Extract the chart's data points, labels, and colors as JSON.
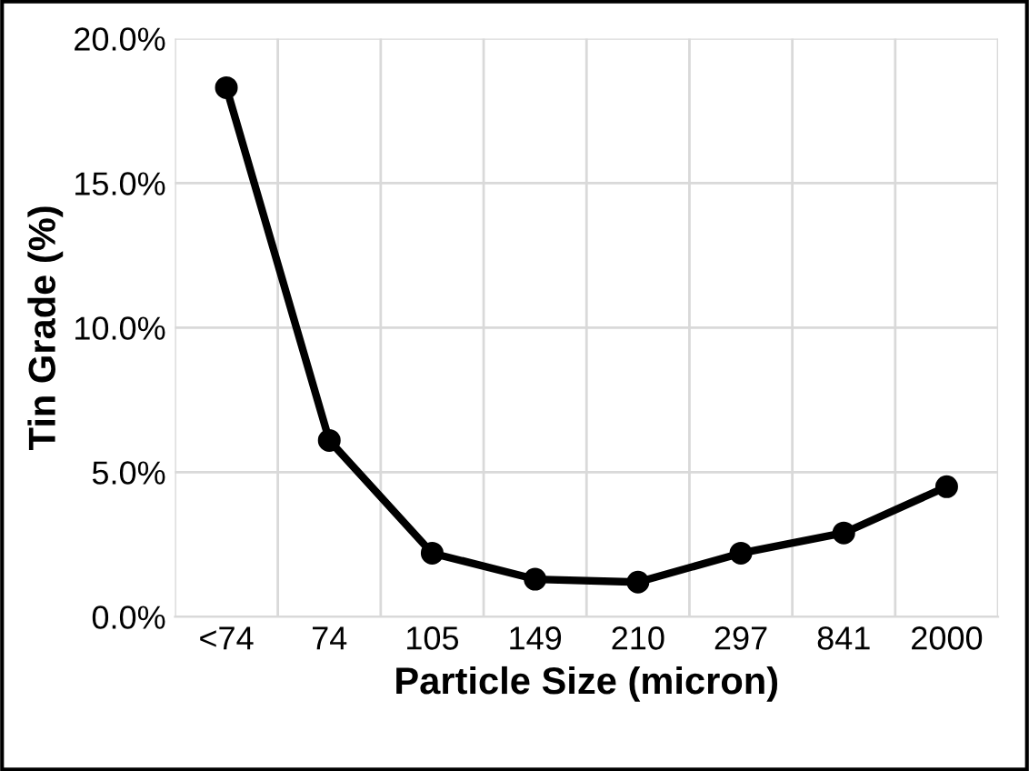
{
  "chart_data": {
    "type": "line",
    "xlabel": "Particle Size (micron)",
    "ylabel": "Tin Grade (%)",
    "categories": [
      "<74",
      "74",
      "105",
      "149",
      "210",
      "297",
      "841",
      "2000"
    ],
    "series": [
      {
        "color": "#000000",
        "values": [
          18.3,
          6.1,
          2.2,
          1.3,
          1.2,
          2.2,
          2.9,
          4.5
        ]
      }
    ],
    "ylim": [
      0,
      20
    ],
    "yticks": [
      {
        "value": 0,
        "label": "0.0%"
      },
      {
        "value": 5,
        "label": "5.0%"
      },
      {
        "value": 10,
        "label": "10.0%"
      },
      {
        "value": 15,
        "label": "15.0%"
      },
      {
        "value": 20,
        "label": "20.0%"
      }
    ],
    "grid": true,
    "marker": "circle",
    "line_style": "solid"
  }
}
